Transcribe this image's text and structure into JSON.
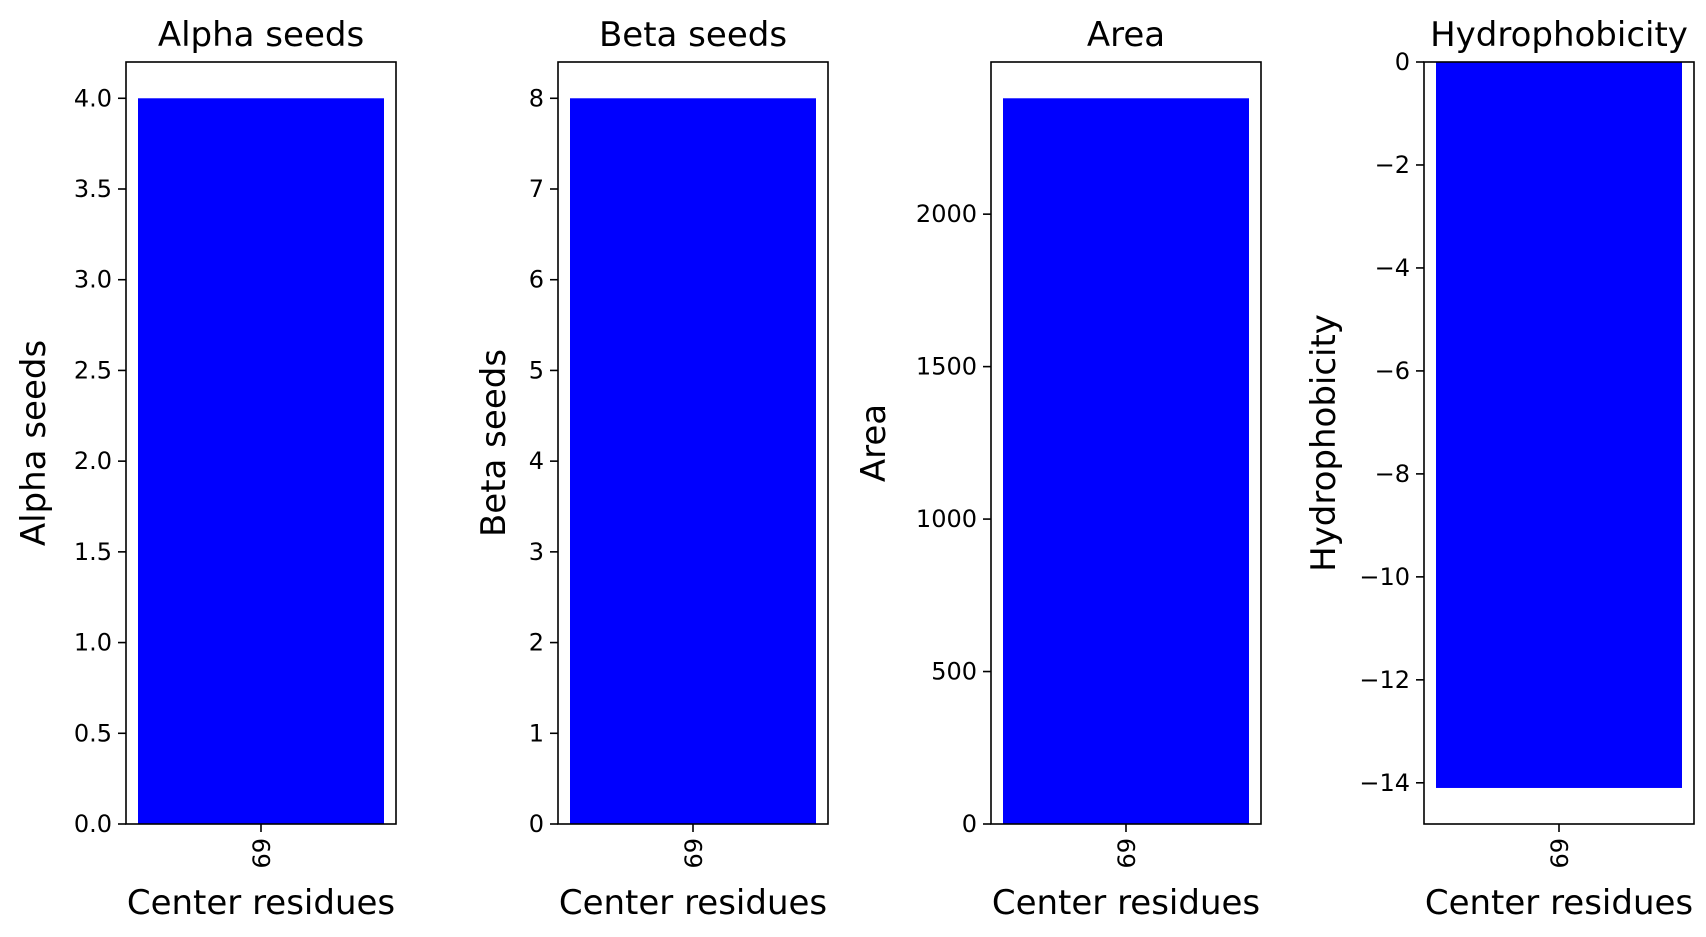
{
  "colors": {
    "bar": "#0000ff"
  },
  "chart_data": [
    {
      "type": "bar",
      "title": "Alpha seeds",
      "xlabel": "Center residues",
      "ylabel": "Alpha seeds",
      "categories": [
        "69"
      ],
      "values": [
        4.0
      ],
      "ylim": [
        0,
        4.2
      ],
      "yticks": [
        0.0,
        0.5,
        1.0,
        1.5,
        2.0,
        2.5,
        3.0,
        3.5,
        4.0
      ],
      "ytick_labels": [
        "0.0",
        "0.5",
        "1.0",
        "1.5",
        "2.0",
        "2.5",
        "3.0",
        "3.5",
        "4.0"
      ],
      "xtick_rotation": "vertical",
      "grid": false
    },
    {
      "type": "bar",
      "title": "Beta seeds",
      "xlabel": "Center residues",
      "ylabel": "Beta seeds",
      "categories": [
        "69"
      ],
      "values": [
        8
      ],
      "ylim": [
        0,
        8.4
      ],
      "yticks": [
        0,
        1,
        2,
        3,
        4,
        5,
        6,
        7,
        8
      ],
      "ytick_labels": [
        "0",
        "1",
        "2",
        "3",
        "4",
        "5",
        "6",
        "7",
        "8"
      ],
      "xtick_rotation": "vertical",
      "grid": false
    },
    {
      "type": "bar",
      "title": "Area",
      "xlabel": "Center residues",
      "ylabel": "Area",
      "categories": [
        "69"
      ],
      "values": [
        2380
      ],
      "ylim": [
        0,
        2499
      ],
      "yticks": [
        0,
        500,
        1000,
        1500,
        2000
      ],
      "ytick_labels": [
        "0",
        "500",
        "1000",
        "1500",
        "2000"
      ],
      "xtick_rotation": "vertical",
      "grid": false
    },
    {
      "type": "bar",
      "title": "Hydrophobicity",
      "xlabel": "Center residues",
      "ylabel": "Hydrophobicity",
      "categories": [
        "69"
      ],
      "values": [
        -14.1
      ],
      "ylim": [
        -14.8,
        0
      ],
      "yticks": [
        0,
        -2,
        -4,
        -6,
        -8,
        -10,
        -12,
        -14
      ],
      "ytick_labels": [
        "0",
        "−2",
        "−4",
        "−6",
        "−8",
        "−10",
        "−12",
        "−14"
      ],
      "xtick_rotation": "vertical",
      "grid": false
    }
  ]
}
